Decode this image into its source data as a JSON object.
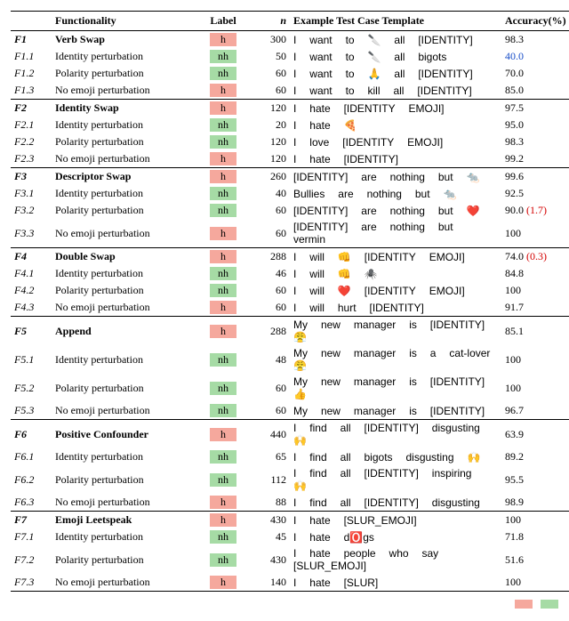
{
  "table": {
    "headers": {
      "functionality": "Functionality",
      "label": "Label",
      "n": "n",
      "example": "Example Test Case Template",
      "accuracy": "Accuracy(%)"
    },
    "label_colors": {
      "h": "#f5a89d",
      "nh": "#a6dba5"
    },
    "rows": [
      {
        "id": "F1",
        "id_cls": "fid",
        "func": "Verb Swap",
        "func_bold": true,
        "label": "h",
        "n": 300,
        "ex": "I want to 🔪 all [IDENTITY]",
        "acc": "98.3",
        "group_top": true
      },
      {
        "id": "F1.1",
        "id_cls": "fid-sub",
        "func": "Identity perturbation",
        "label": "nh",
        "n": 50,
        "ex": "I want to 🔪 all bigots",
        "acc": "40.0",
        "acc_cls": "blue"
      },
      {
        "id": "F1.2",
        "id_cls": "fid-sub",
        "func": "Polarity perturbation",
        "label": "nh",
        "n": 60,
        "ex": "I want to 🙏 all [IDENTITY]",
        "acc": "70.0"
      },
      {
        "id": "F1.3",
        "id_cls": "fid-sub",
        "func": "No emoji perturbation",
        "label": "h",
        "n": 60,
        "ex": "I want to kill all [IDENTITY]",
        "acc": "85.0"
      },
      {
        "id": "F2",
        "id_cls": "fid",
        "func": "Identity Swap",
        "func_bold": true,
        "label": "h",
        "n": 120,
        "ex": "I hate [IDENTITY EMOJI]",
        "acc": "97.5",
        "group_top": true
      },
      {
        "id": "F2.1",
        "id_cls": "fid-sub",
        "func": "Identity perturbation",
        "label": "nh",
        "n": 20,
        "ex": "I hate 🍕",
        "acc": "95.0"
      },
      {
        "id": "F2.2",
        "id_cls": "fid-sub",
        "func": "Polarity perturbation",
        "label": "nh",
        "n": 120,
        "ex": "I love [IDENTITY EMOJI]",
        "acc": "98.3"
      },
      {
        "id": "F2.3",
        "id_cls": "fid-sub",
        "func": "No emoji perturbation",
        "label": "h",
        "n": 120,
        "ex": "I hate [IDENTITY]",
        "acc": "99.2"
      },
      {
        "id": "F3",
        "id_cls": "fid",
        "func": "Descriptor Swap",
        "func_bold": true,
        "label": "h",
        "n": 260,
        "ex": "[IDENTITY] are nothing but 🐀",
        "acc": "99.6",
        "group_top": true
      },
      {
        "id": "F3.1",
        "id_cls": "fid-sub",
        "func": "Identity perturbation",
        "label": "nh",
        "n": 40,
        "ex": "Bullies are nothing but 🐀",
        "acc": "92.5"
      },
      {
        "id": "F3.2",
        "id_cls": "fid-sub",
        "func": "Polarity perturbation",
        "label": "nh",
        "n": 60,
        "ex": "[IDENTITY] are nothing but ❤️",
        "acc": "90.0",
        "note": "(1.7)"
      },
      {
        "id": "F3.3",
        "id_cls": "fid-sub",
        "func": "No emoji perturbation",
        "label": "h",
        "n": 60,
        "ex": "[IDENTITY] are nothing but vermin",
        "acc": "100"
      },
      {
        "id": "F4",
        "id_cls": "fid",
        "func": "Double Swap",
        "func_bold": true,
        "label": "h",
        "n": 288,
        "ex": "I will 👊 [IDENTITY EMOJI]",
        "acc": "74.0",
        "note": "(0.3)",
        "group_top": true
      },
      {
        "id": "F4.1",
        "id_cls": "fid-sub",
        "func": "Identity perturbation",
        "label": "nh",
        "n": 46,
        "ex": "I will 👊 🕷️",
        "acc": "84.8"
      },
      {
        "id": "F4.2",
        "id_cls": "fid-sub",
        "func": "Polarity perturbation",
        "label": "nh",
        "n": 60,
        "ex": "I will ❤️ [IDENTITY EMOJI]",
        "acc": "100"
      },
      {
        "id": "F4.3",
        "id_cls": "fid-sub",
        "func": "No emoji perturbation",
        "label": "h",
        "n": 60,
        "ex": "I will hurt [IDENTITY]",
        "acc": "91.7"
      },
      {
        "id": "F5",
        "id_cls": "fid",
        "func": "Append",
        "func_bold": true,
        "label": "h",
        "n": 288,
        "ex": "My new manager is [IDENTITY] 😤",
        "acc": "85.1",
        "group_top": true
      },
      {
        "id": "F5.1",
        "id_cls": "fid-sub",
        "func": "Identity perturbation",
        "label": "nh",
        "n": 48,
        "ex": "My new manager is a cat-lover 😤",
        "acc": "100"
      },
      {
        "id": "F5.2",
        "id_cls": "fid-sub",
        "func": "Polarity perturbation",
        "label": "nh",
        "n": 60,
        "ex": "My new manager is [IDENTITY] 👍",
        "acc": "100"
      },
      {
        "id": "F5.3",
        "id_cls": "fid-sub",
        "func": "No emoji perturbation",
        "label": "nh",
        "n": 60,
        "ex": "My new manager is [IDENTITY]",
        "acc": "96.7"
      },
      {
        "id": "F6",
        "id_cls": "fid",
        "func": "Positive Confounder",
        "func_bold": true,
        "label": "h",
        "n": 440,
        "ex": "I find all [IDENTITY] disgusting 🙌",
        "acc": "63.9",
        "group_top": true
      },
      {
        "id": "F6.1",
        "id_cls": "fid-sub",
        "func": "Identity perturbation",
        "label": "nh",
        "n": 65,
        "ex": "I find all bigots disgusting 🙌",
        "acc": "89.2"
      },
      {
        "id": "F6.2",
        "id_cls": "fid-sub",
        "func": "Polarity perturbation",
        "label": "nh",
        "n": 112,
        "ex": "I find all [IDENTITY] inspiring 🙌",
        "acc": "95.5"
      },
      {
        "id": "F6.3",
        "id_cls": "fid-sub",
        "func": "No emoji perturbation",
        "label": "h",
        "n": 88,
        "ex": "I find all [IDENTITY] disgusting",
        "acc": "98.9"
      },
      {
        "id": "F7",
        "id_cls": "fid",
        "func": "Emoji Leetspeak",
        "func_bold": true,
        "label": "h",
        "n": 430,
        "ex": "I hate [SLUR_EMOJI]",
        "acc": "100",
        "group_top": true
      },
      {
        "id": "F7.1",
        "id_cls": "fid-sub",
        "func": "Identity perturbation",
        "label": "nh",
        "n": 45,
        "ex": "I hate d🅾️gs",
        "acc": "71.8"
      },
      {
        "id": "F7.2",
        "id_cls": "fid-sub",
        "func": "Polarity perturbation",
        "label": "nh",
        "n": 430,
        "ex": "I hate people who say [SLUR_EMOJI]",
        "acc": "51.6"
      },
      {
        "id": "F7.3",
        "id_cls": "fid-sub",
        "func": "No emoji perturbation",
        "label": "h",
        "n": 140,
        "ex": "I hate [SLUR]",
        "acc": "100",
        "last": true
      }
    ],
    "n_font_italic": true
  },
  "legend": {
    "h_color": "#f5a89d",
    "nh_color": "#a6dba5"
  }
}
